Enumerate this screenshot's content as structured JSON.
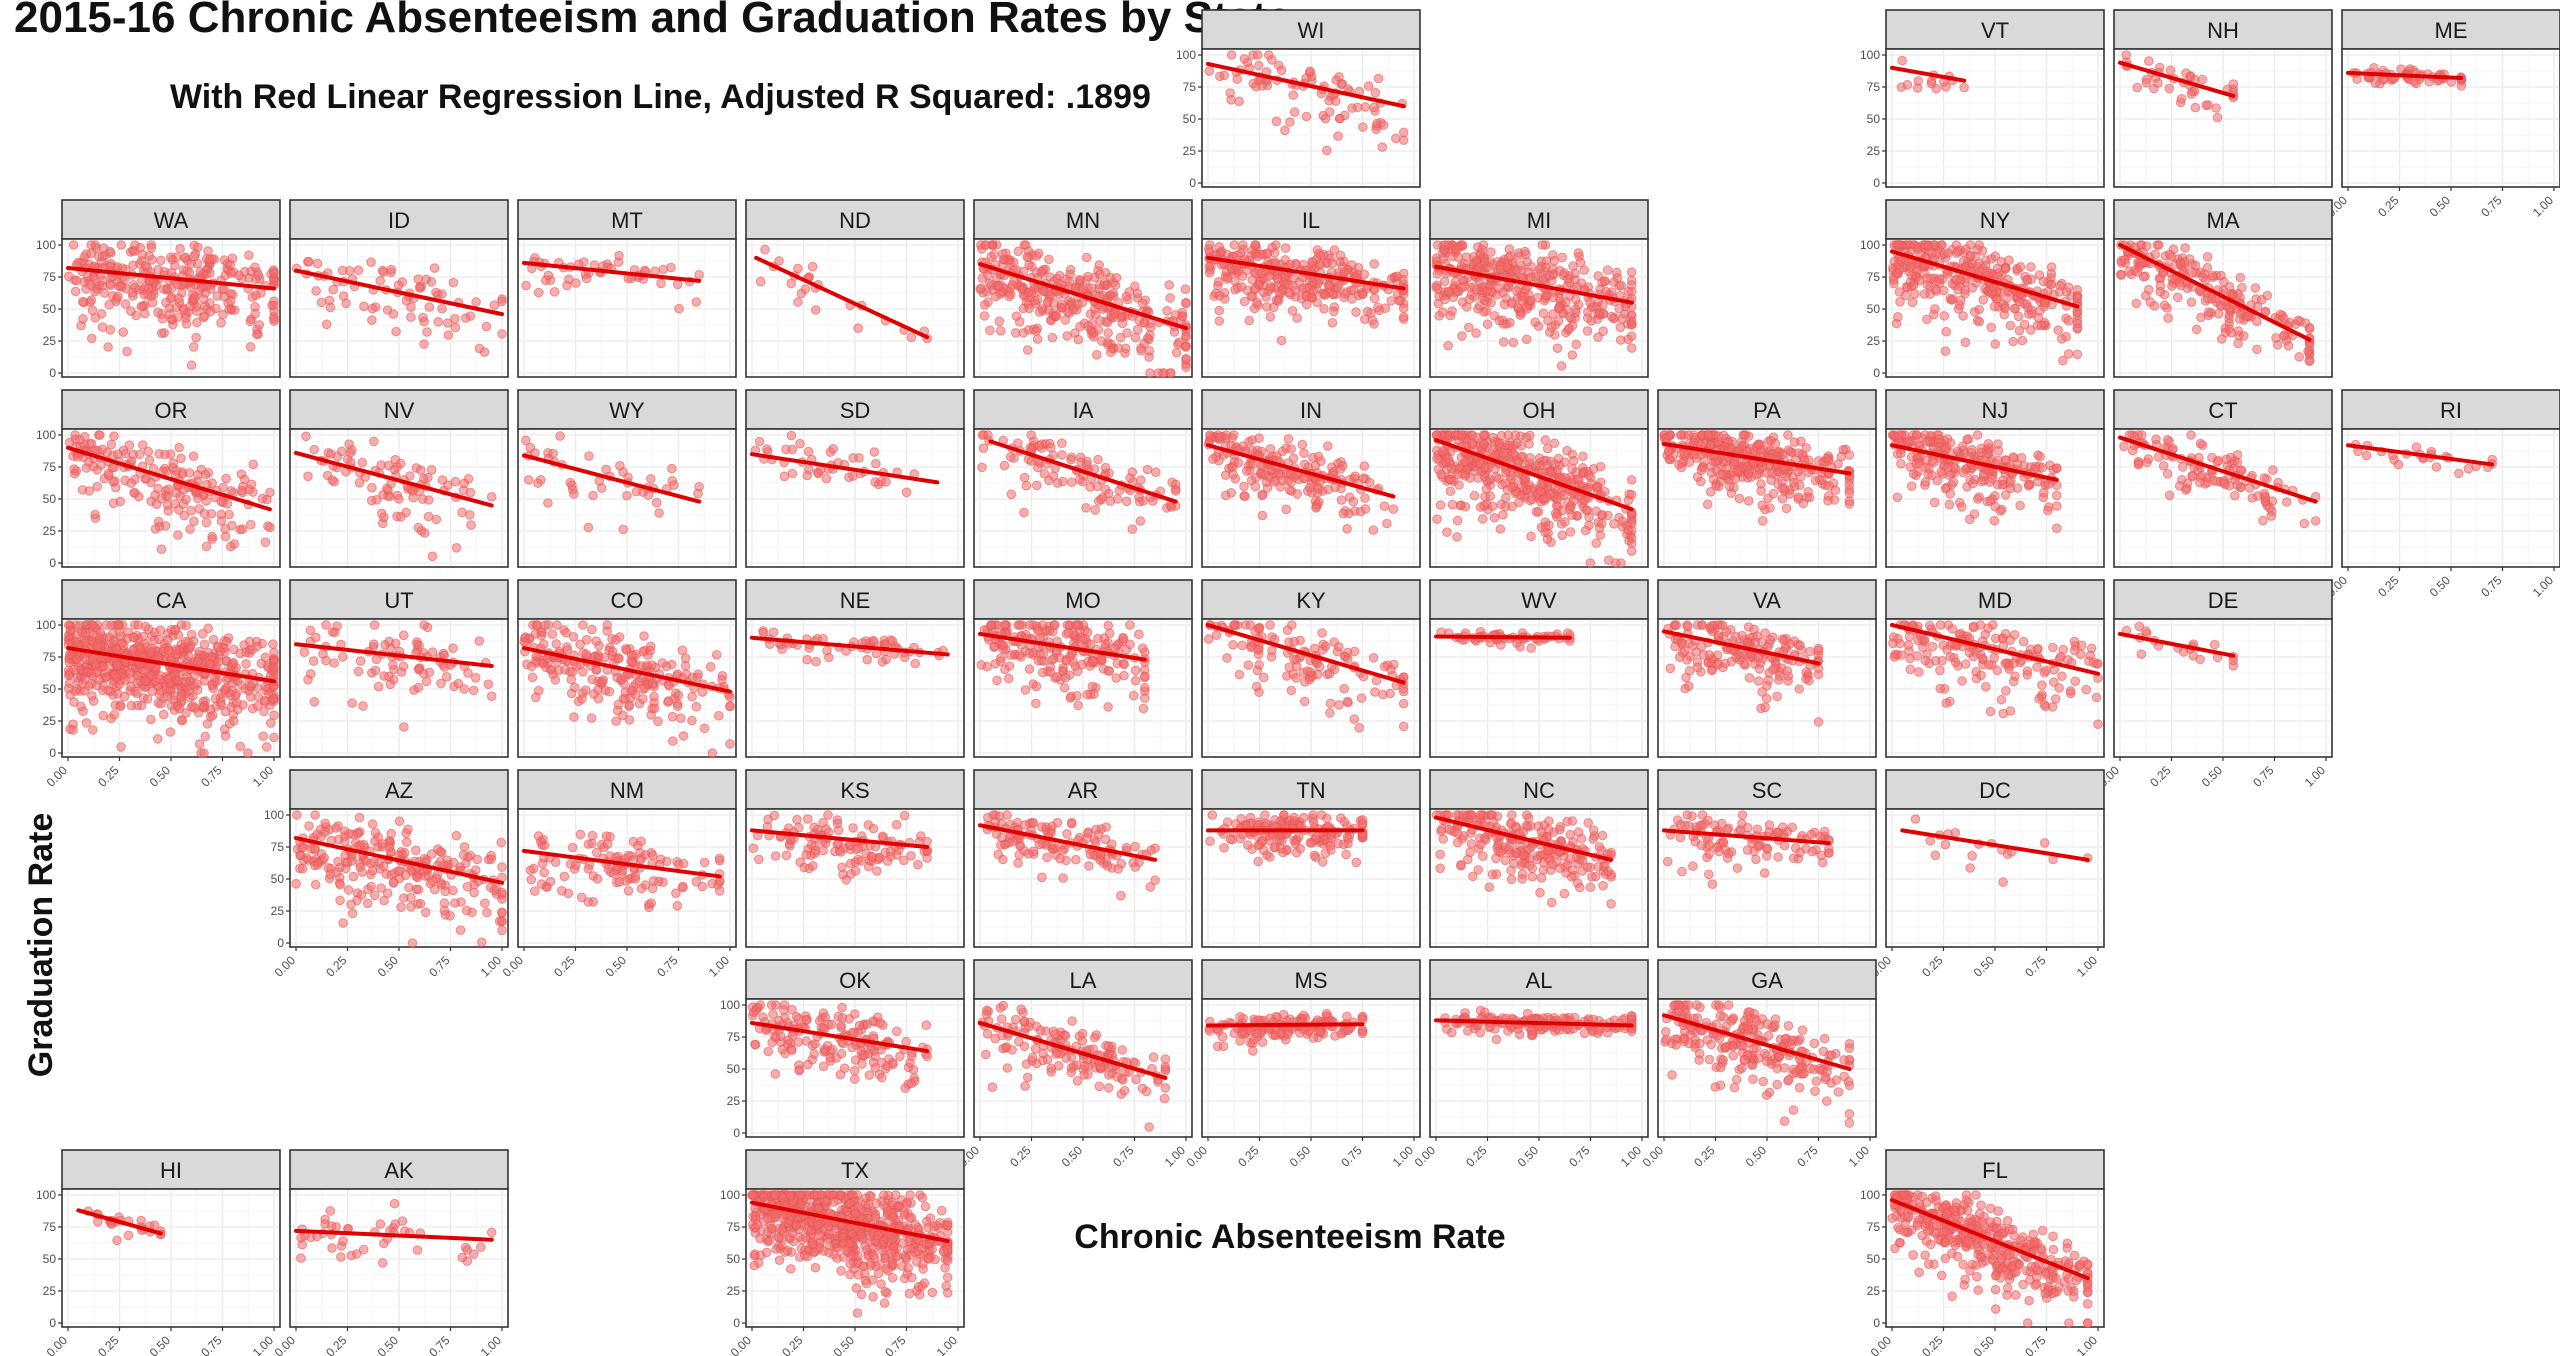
{
  "chart_data": {
    "type": "scatter",
    "title": "2015-16 Chronic Absenteeism and Graduation Rates by State",
    "subtitle": "With Red Linear Regression Line, Adjusted R Squared: .1899",
    "xlabel": "Chronic Absenteeism Rate",
    "ylabel": "Graduation Rate",
    "xlim": [
      0,
      1
    ],
    "ylim": [
      0,
      100
    ],
    "x_ticks": [
      "0.00",
      "0.25",
      "0.50",
      "0.75",
      "1.00"
    ],
    "y_ticks": [
      "0",
      "25",
      "50",
      "75",
      "100"
    ],
    "point_color": "#f26b6b",
    "line_color": "#e00000",
    "grid": true,
    "facets": [
      {
        "state": "WI",
        "row": 0,
        "col": 5,
        "line": {
          "x0": 0.0,
          "y0": 93,
          "x1": 0.95,
          "y1": 60
        },
        "spread": [
          0.95,
          35
        ],
        "n": 90,
        "density": 0.35
      },
      {
        "state": "VT",
        "row": 0,
        "col": 8,
        "line": {
          "x0": 0.0,
          "y0": 90,
          "x1": 0.35,
          "y1": 80
        },
        "spread": [
          0.35,
          12
        ],
        "n": 14,
        "density": 0.5
      },
      {
        "state": "NH",
        "row": 0,
        "col": 9,
        "line": {
          "x0": 0.0,
          "y0": 94,
          "x1": 0.55,
          "y1": 68
        },
        "spread": [
          0.55,
          18
        ],
        "n": 40,
        "density": 0.5
      },
      {
        "state": "ME",
        "row": 0,
        "col": 10,
        "line": {
          "x0": 0.0,
          "y0": 86,
          "x1": 0.55,
          "y1": 82
        },
        "spread": [
          0.55,
          8
        ],
        "n": 60,
        "density": 0.5
      },
      {
        "state": "WA",
        "row": 1,
        "col": 0,
        "line": {
          "x0": 0.0,
          "y0": 82,
          "x1": 1.0,
          "y1": 66
        },
        "spread": [
          1.0,
          40
        ],
        "n": 320,
        "density": 0.3
      },
      {
        "state": "ID",
        "row": 1,
        "col": 1,
        "line": {
          "x0": 0.0,
          "y0": 80,
          "x1": 1.0,
          "y1": 46
        },
        "spread": [
          1.0,
          35
        ],
        "n": 80,
        "density": 0.35
      },
      {
        "state": "MT",
        "row": 1,
        "col": 2,
        "line": {
          "x0": 0.0,
          "y0": 86,
          "x1": 0.85,
          "y1": 72
        },
        "spread": [
          0.85,
          18
        ],
        "n": 50,
        "density": 0.4
      },
      {
        "state": "ND",
        "row": 1,
        "col": 3,
        "line": {
          "x0": 0.02,
          "y0": 90,
          "x1": 0.85,
          "y1": 28
        },
        "spread": [
          0.85,
          20
        ],
        "n": 25,
        "density": 0.3
      },
      {
        "state": "MN",
        "row": 1,
        "col": 4,
        "line": {
          "x0": 0.0,
          "y0": 85,
          "x1": 1.0,
          "y1": 35
        },
        "spread": [
          1.0,
          40
        ],
        "n": 350,
        "density": 0.25
      },
      {
        "state": "IL",
        "row": 1,
        "col": 5,
        "line": {
          "x0": 0.0,
          "y0": 90,
          "x1": 0.95,
          "y1": 66
        },
        "spread": [
          0.95,
          30
        ],
        "n": 320,
        "density": 0.3
      },
      {
        "state": "MI",
        "row": 1,
        "col": 6,
        "line": {
          "x0": 0.0,
          "y0": 83,
          "x1": 0.95,
          "y1": 55
        },
        "spread": [
          0.95,
          40
        ],
        "n": 400,
        "density": 0.25
      },
      {
        "state": "NY",
        "row": 1,
        "col": 8,
        "line": {
          "x0": 0.0,
          "y0": 95,
          "x1": 0.9,
          "y1": 52
        },
        "spread": [
          0.9,
          40
        ],
        "n": 350,
        "density": 0.25
      },
      {
        "state": "MA",
        "row": 1,
        "col": 9,
        "line": {
          "x0": 0.0,
          "y0": 100,
          "x1": 0.92,
          "y1": 26
        },
        "spread": [
          0.92,
          30
        ],
        "n": 220,
        "density": 0.25
      },
      {
        "state": "OR",
        "row": 2,
        "col": 0,
        "line": {
          "x0": 0.0,
          "y0": 90,
          "x1": 0.98,
          "y1": 42
        },
        "spread": [
          0.98,
          40
        ],
        "n": 200,
        "density": 0.3
      },
      {
        "state": "NV",
        "row": 2,
        "col": 1,
        "line": {
          "x0": 0.0,
          "y0": 86,
          "x1": 0.95,
          "y1": 45
        },
        "spread": [
          0.95,
          35
        ],
        "n": 90,
        "density": 0.35
      },
      {
        "state": "WY",
        "row": 2,
        "col": 2,
        "line": {
          "x0": 0.0,
          "y0": 84,
          "x1": 0.85,
          "y1": 48
        },
        "spread": [
          0.85,
          30
        ],
        "n": 45,
        "density": 0.35
      },
      {
        "state": "SD",
        "row": 2,
        "col": 3,
        "line": {
          "x0": 0.0,
          "y0": 85,
          "x1": 0.9,
          "y1": 63
        },
        "spread": [
          0.9,
          25
        ],
        "n": 45,
        "density": 0.4
      },
      {
        "state": "IA",
        "row": 2,
        "col": 4,
        "line": {
          "x0": 0.05,
          "y0": 95,
          "x1": 0.95,
          "y1": 48
        },
        "spread": [
          0.95,
          30
        ],
        "n": 110,
        "density": 0.35
      },
      {
        "state": "IN",
        "row": 2,
        "col": 5,
        "line": {
          "x0": 0.0,
          "y0": 92,
          "x1": 0.9,
          "y1": 52
        },
        "spread": [
          0.9,
          30
        ],
        "n": 200,
        "density": 0.3
      },
      {
        "state": "OH",
        "row": 2,
        "col": 6,
        "line": {
          "x0": 0.0,
          "y0": 96,
          "x1": 0.95,
          "y1": 42
        },
        "spread": [
          0.95,
          45
        ],
        "n": 450,
        "density": 0.25
      },
      {
        "state": "PA",
        "row": 2,
        "col": 7,
        "line": {
          "x0": 0.0,
          "y0": 93,
          "x1": 0.9,
          "y1": 70
        },
        "spread": [
          0.9,
          30
        ],
        "n": 350,
        "density": 0.3
      },
      {
        "state": "NJ",
        "row": 2,
        "col": 8,
        "line": {
          "x0": 0.0,
          "y0": 92,
          "x1": 0.8,
          "y1": 65
        },
        "spread": [
          0.8,
          30
        ],
        "n": 250,
        "density": 0.3
      },
      {
        "state": "CT",
        "row": 2,
        "col": 9,
        "line": {
          "x0": 0.0,
          "y0": 98,
          "x1": 0.95,
          "y1": 48
        },
        "spread": [
          0.95,
          25
        ],
        "n": 120,
        "density": 0.35
      },
      {
        "state": "RI",
        "row": 2,
        "col": 10,
        "line": {
          "x0": 0.0,
          "y0": 92,
          "x1": 0.7,
          "y1": 77
        },
        "spread": [
          0.7,
          10
        ],
        "n": 25,
        "density": 0.5
      },
      {
        "state": "CA",
        "row": 3,
        "col": 0,
        "line": {
          "x0": 0.0,
          "y0": 82,
          "x1": 1.0,
          "y1": 56
        },
        "spread": [
          1.0,
          45
        ],
        "n": 700,
        "density": 0.2
      },
      {
        "state": "UT",
        "row": 3,
        "col": 1,
        "line": {
          "x0": 0.0,
          "y0": 85,
          "x1": 0.95,
          "y1": 68
        },
        "spread": [
          0.95,
          35
        ],
        "n": 90,
        "density": 0.35
      },
      {
        "state": "CO",
        "row": 3,
        "col": 2,
        "line": {
          "x0": 0.0,
          "y0": 82,
          "x1": 1.0,
          "y1": 48
        },
        "spread": [
          1.0,
          40
        ],
        "n": 250,
        "density": 0.25
      },
      {
        "state": "NE",
        "row": 3,
        "col": 3,
        "line": {
          "x0": 0.0,
          "y0": 90,
          "x1": 0.95,
          "y1": 77
        },
        "spread": [
          0.95,
          12
        ],
        "n": 60,
        "density": 0.45
      },
      {
        "state": "MO",
        "row": 3,
        "col": 4,
        "line": {
          "x0": 0.0,
          "y0": 93,
          "x1": 0.8,
          "y1": 73
        },
        "spread": [
          0.8,
          35
        ],
        "n": 220,
        "density": 0.35
      },
      {
        "state": "KY",
        "row": 3,
        "col": 5,
        "line": {
          "x0": 0.0,
          "y0": 100,
          "x1": 0.95,
          "y1": 55
        },
        "spread": [
          0.95,
          35
        ],
        "n": 130,
        "density": 0.35
      },
      {
        "state": "WV",
        "row": 3,
        "col": 6,
        "line": {
          "x0": 0.0,
          "y0": 91,
          "x1": 0.65,
          "y1": 90
        },
        "spread": [
          0.65,
          7
        ],
        "n": 60,
        "density": 0.5
      },
      {
        "state": "VA",
        "row": 3,
        "col": 7,
        "line": {
          "x0": 0.0,
          "y0": 95,
          "x1": 0.75,
          "y1": 70
        },
        "spread": [
          0.75,
          30
        ],
        "n": 180,
        "density": 0.4
      },
      {
        "state": "MD",
        "row": 3,
        "col": 8,
        "line": {
          "x0": 0.0,
          "y0": 100,
          "x1": 1.0,
          "y1": 62
        },
        "spread": [
          1.0,
          35
        ],
        "n": 180,
        "density": 0.3
      },
      {
        "state": "DE",
        "row": 3,
        "col": 9,
        "line": {
          "x0": 0.0,
          "y0": 93,
          "x1": 0.55,
          "y1": 76
        },
        "spread": [
          0.55,
          12
        ],
        "n": 20,
        "density": 0.5
      },
      {
        "state": "AZ",
        "row": 4,
        "col": 1,
        "line": {
          "x0": 0.0,
          "y0": 82,
          "x1": 1.0,
          "y1": 47
        },
        "spread": [
          1.0,
          40
        ],
        "n": 250,
        "density": 0.3
      },
      {
        "state": "NM",
        "row": 4,
        "col": 2,
        "line": {
          "x0": 0.0,
          "y0": 72,
          "x1": 0.95,
          "y1": 52
        },
        "spread": [
          0.95,
          35
        ],
        "n": 120,
        "density": 0.3
      },
      {
        "state": "KS",
        "row": 4,
        "col": 3,
        "line": {
          "x0": 0.0,
          "y0": 88,
          "x1": 0.85,
          "y1": 75
        },
        "spread": [
          0.85,
          25
        ],
        "n": 120,
        "density": 0.4
      },
      {
        "state": "AR",
        "row": 4,
        "col": 4,
        "line": {
          "x0": 0.0,
          "y0": 92,
          "x1": 0.85,
          "y1": 65
        },
        "spread": [
          0.85,
          25
        ],
        "n": 130,
        "density": 0.4
      },
      {
        "state": "TN",
        "row": 4,
        "col": 5,
        "line": {
          "x0": 0.0,
          "y0": 88,
          "x1": 0.75,
          "y1": 88
        },
        "spread": [
          0.75,
          20
        ],
        "n": 180,
        "density": 0.45
      },
      {
        "state": "NC",
        "row": 4,
        "col": 6,
        "line": {
          "x0": 0.0,
          "y0": 98,
          "x1": 0.85,
          "y1": 65
        },
        "spread": [
          0.85,
          30
        ],
        "n": 250,
        "density": 0.35
      },
      {
        "state": "SC",
        "row": 4,
        "col": 7,
        "line": {
          "x0": 0.0,
          "y0": 88,
          "x1": 0.8,
          "y1": 78
        },
        "spread": [
          0.8,
          25
        ],
        "n": 110,
        "density": 0.45
      },
      {
        "state": "DC",
        "row": 4,
        "col": 8,
        "line": {
          "x0": 0.05,
          "y0": 88,
          "x1": 0.95,
          "y1": 65
        },
        "spread": [
          0.95,
          20
        ],
        "n": 18,
        "density": 0.2
      },
      {
        "state": "OK",
        "row": 5,
        "col": 3,
        "line": {
          "x0": 0.0,
          "y0": 86,
          "x1": 0.85,
          "y1": 64
        },
        "spread": [
          0.85,
          30
        ],
        "n": 180,
        "density": 0.35
      },
      {
        "state": "LA",
        "row": 5,
        "col": 4,
        "line": {
          "x0": 0.0,
          "y0": 86,
          "x1": 0.9,
          "y1": 43
        },
        "spread": [
          0.9,
          30
        ],
        "n": 160,
        "density": 0.35
      },
      {
        "state": "MS",
        "row": 5,
        "col": 5,
        "line": {
          "x0": 0.0,
          "y0": 84,
          "x1": 0.75,
          "y1": 85
        },
        "spread": [
          0.75,
          12
        ],
        "n": 150,
        "density": 0.5
      },
      {
        "state": "AL",
        "row": 5,
        "col": 6,
        "line": {
          "x0": 0.0,
          "y0": 88,
          "x1": 0.95,
          "y1": 84
        },
        "spread": [
          0.95,
          10
        ],
        "n": 170,
        "density": 0.5
      },
      {
        "state": "GA",
        "row": 5,
        "col": 7,
        "line": {
          "x0": 0.0,
          "y0": 92,
          "x1": 0.9,
          "y1": 50
        },
        "spread": [
          0.9,
          35
        ],
        "n": 250,
        "density": 0.35
      },
      {
        "state": "HI",
        "row": 6,
        "col": 0,
        "line": {
          "x0": 0.05,
          "y0": 88,
          "x1": 0.45,
          "y1": 70
        },
        "spread": [
          0.45,
          12
        ],
        "n": 25,
        "density": 0.6
      },
      {
        "state": "AK",
        "row": 6,
        "col": 1,
        "line": {
          "x0": 0.0,
          "y0": 72,
          "x1": 0.95,
          "y1": 65
        },
        "spread": [
          0.95,
          30
        ],
        "n": 45,
        "density": 0.25
      },
      {
        "state": "TX",
        "row": 6,
        "col": 3,
        "line": {
          "x0": 0.0,
          "y0": 94,
          "x1": 0.95,
          "y1": 64
        },
        "spread": [
          0.95,
          40
        ],
        "n": 700,
        "density": 0.25
      },
      {
        "state": "FL",
        "row": 6,
        "col": 8,
        "line": {
          "x0": 0.0,
          "y0": 96,
          "x1": 0.95,
          "y1": 35
        },
        "spread": [
          0.95,
          35
        ],
        "n": 400,
        "density": 0.3
      }
    ]
  }
}
